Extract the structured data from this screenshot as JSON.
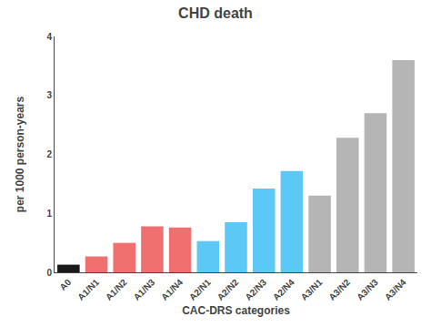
{
  "chart_data": {
    "type": "bar",
    "title": "CHD death",
    "xlabel": "CAC-DRS categories",
    "ylabel": "per 1000 person-years",
    "categories": [
      "A0",
      "A1/N1",
      "A1/N2",
      "A1/N3",
      "A1/N4",
      "A2/N1",
      "A2/N2",
      "A2/N3",
      "A2/N4",
      "A3/N1",
      "A3/N2",
      "A3/N3",
      "A3/N4"
    ],
    "values": [
      0.13,
      0.27,
      0.5,
      0.78,
      0.76,
      0.53,
      0.85,
      1.42,
      1.72,
      1.3,
      2.28,
      2.7,
      3.6
    ],
    "colors": [
      "#1a1a1a",
      "#f07070",
      "#f07070",
      "#f07070",
      "#f07070",
      "#5bc8f5",
      "#5bc8f5",
      "#5bc8f5",
      "#5bc8f5",
      "#b5b5b5",
      "#b5b5b5",
      "#b5b5b5",
      "#b5b5b5"
    ],
    "ylim": [
      0,
      4
    ],
    "yticks": [
      0,
      1,
      2,
      3,
      4
    ],
    "grid": false
  }
}
